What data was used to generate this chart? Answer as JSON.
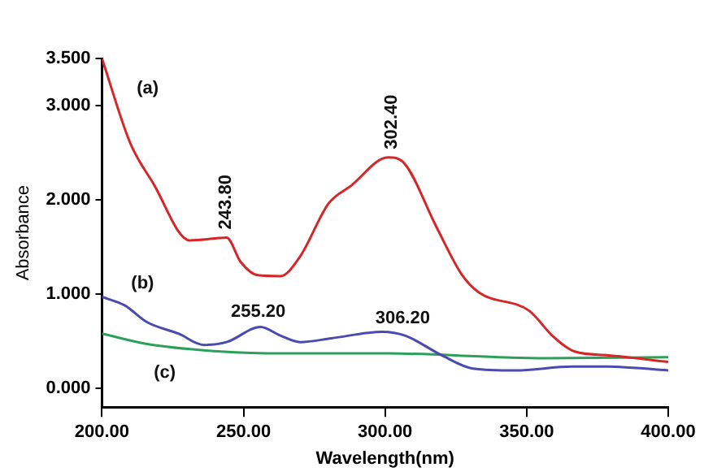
{
  "chart_data": {
    "type": "line",
    "xlabel": "Wavelength(nm)",
    "ylabel": "Absorbance",
    "xlim": [
      200,
      400
    ],
    "ylim": [
      -0.2,
      3.5
    ],
    "xticks": [
      {
        "value": 200,
        "label": "200.00"
      },
      {
        "value": 250,
        "label": "250.00"
      },
      {
        "value": 300,
        "label": "300.00"
      },
      {
        "value": 350,
        "label": "350.00"
      },
      {
        "value": 400,
        "label": "400.00"
      }
    ],
    "yticks": [
      {
        "value": 0,
        "label": "0.000"
      },
      {
        "value": 1,
        "label": "1.000"
      },
      {
        "value": 2,
        "label": "2.000"
      },
      {
        "value": 3,
        "label": "3.000"
      },
      {
        "value": 3.5,
        "label": "3.500"
      }
    ],
    "grid": false,
    "legend": false,
    "marker": "none",
    "line_style": "solid",
    "series": [
      {
        "name": "(a)",
        "color": "#d62728",
        "x": [
          200,
          210,
          218,
          231,
          240,
          244,
          249,
          255,
          263,
          270,
          280,
          288,
          301,
          307,
          318,
          327,
          333,
          351,
          359,
          367,
          379,
          400
        ],
        "values": [
          3.5,
          2.6,
          2.18,
          1.57,
          1.59,
          1.6,
          1.34,
          1.2,
          1.19,
          1.4,
          1.96,
          2.15,
          2.45,
          2.38,
          1.72,
          1.21,
          1.02,
          0.82,
          0.56,
          0.39,
          0.35,
          0.28
        ]
      },
      {
        "name": "(b)",
        "color": "#4a4ab0",
        "x": [
          200,
          208,
          216,
          227,
          236,
          244,
          256,
          263,
          270,
          281,
          299,
          307,
          320,
          331,
          346,
          366,
          379,
          400
        ],
        "values": [
          0.97,
          0.88,
          0.7,
          0.58,
          0.46,
          0.49,
          0.65,
          0.56,
          0.49,
          0.53,
          0.6,
          0.56,
          0.35,
          0.21,
          0.19,
          0.23,
          0.23,
          0.19
        ]
      },
      {
        "name": "(c)",
        "color": "#2ca05a",
        "x": [
          200,
          216,
          242,
          264,
          301,
          340,
          357,
          400
        ],
        "values": [
          0.58,
          0.47,
          0.39,
          0.37,
          0.37,
          0.33,
          0.32,
          0.33
        ]
      }
    ],
    "annotations": [
      {
        "text": "243.80",
        "x": 243.8,
        "y": 1.6
      },
      {
        "text": "302.40",
        "x": 302.4,
        "y": 2.45
      },
      {
        "text": "255.20",
        "x": 255.2,
        "y": 0.65
      },
      {
        "text": "306.20",
        "x": 306.2,
        "y": 0.58
      }
    ]
  }
}
